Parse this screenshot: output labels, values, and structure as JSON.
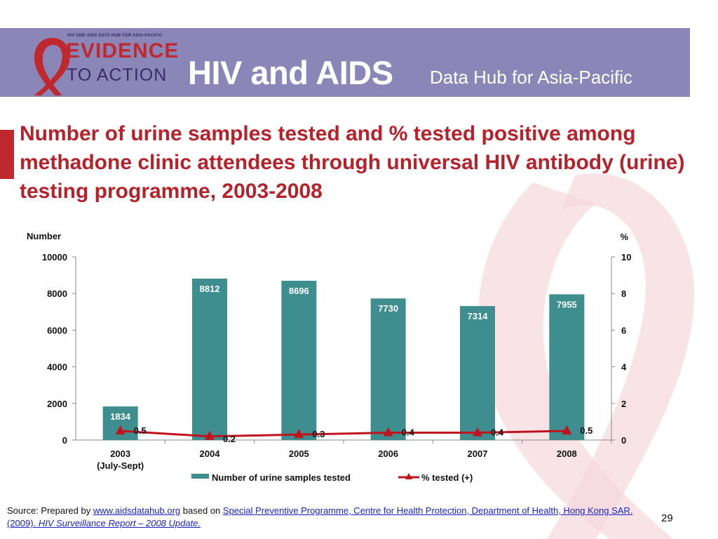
{
  "header": {
    "logo_small": "HIV AND AIDS DATA HUB FOR ASIA-PACIFIC",
    "logo_line1": "EVIDENCE",
    "logo_line2": "TO ACTION",
    "title_main": "HIV and AIDS",
    "title_sub": "Data Hub for Asia-Pacific"
  },
  "slide_title": "Number of urine samples tested and % tested positive among methadone clinic attendees through universal HIV antibody (urine) testing programme, 2003-2008",
  "colors": {
    "bar": "#3e8e90",
    "line": "#c0141c",
    "header": "#8a87b8",
    "title": "#b5222a"
  },
  "chart_data": {
    "type": "bar",
    "categories": [
      "2003\n(July-Sept)",
      "2004",
      "2005",
      "2006",
      "2007",
      "2008"
    ],
    "category_labels": [
      [
        "2003",
        "(July-Sept)"
      ],
      [
        "2004"
      ],
      [
        "2005"
      ],
      [
        "2006"
      ],
      [
        "2007"
      ],
      [
        "2008"
      ]
    ],
    "ylabel": "Number",
    "y2label": "%",
    "ylim": [
      0,
      10000
    ],
    "y2lim": [
      0,
      10
    ],
    "yticks": [
      "0",
      "2000",
      "4000",
      "6000",
      "8000",
      "10000"
    ],
    "y2ticks": [
      "0",
      "2",
      "4",
      "6",
      "8",
      "10"
    ],
    "series": [
      {
        "name": "Number of urine samples tested",
        "type": "bar",
        "axis": "left",
        "values": [
          1834,
          8812,
          8696,
          7730,
          7314,
          7955
        ]
      },
      {
        "name": "% tested (+)",
        "type": "line",
        "axis": "right",
        "marker": "triangle",
        "values": [
          0.5,
          0.2,
          0.3,
          0.4,
          0.4,
          0.5
        ]
      }
    ],
    "legend": "bottom"
  },
  "source": {
    "prefix": "Source: Prepared by ",
    "link1": "www.aidsdatahub.org",
    "middle": "  based on ",
    "link2": "Special Preventive Programme, Centre for Health Protection, Department of Health, Hong Kong SAR. (2009). ",
    "link3": "HIV Surveillance Report – 2008 Update."
  },
  "page_number": "29"
}
